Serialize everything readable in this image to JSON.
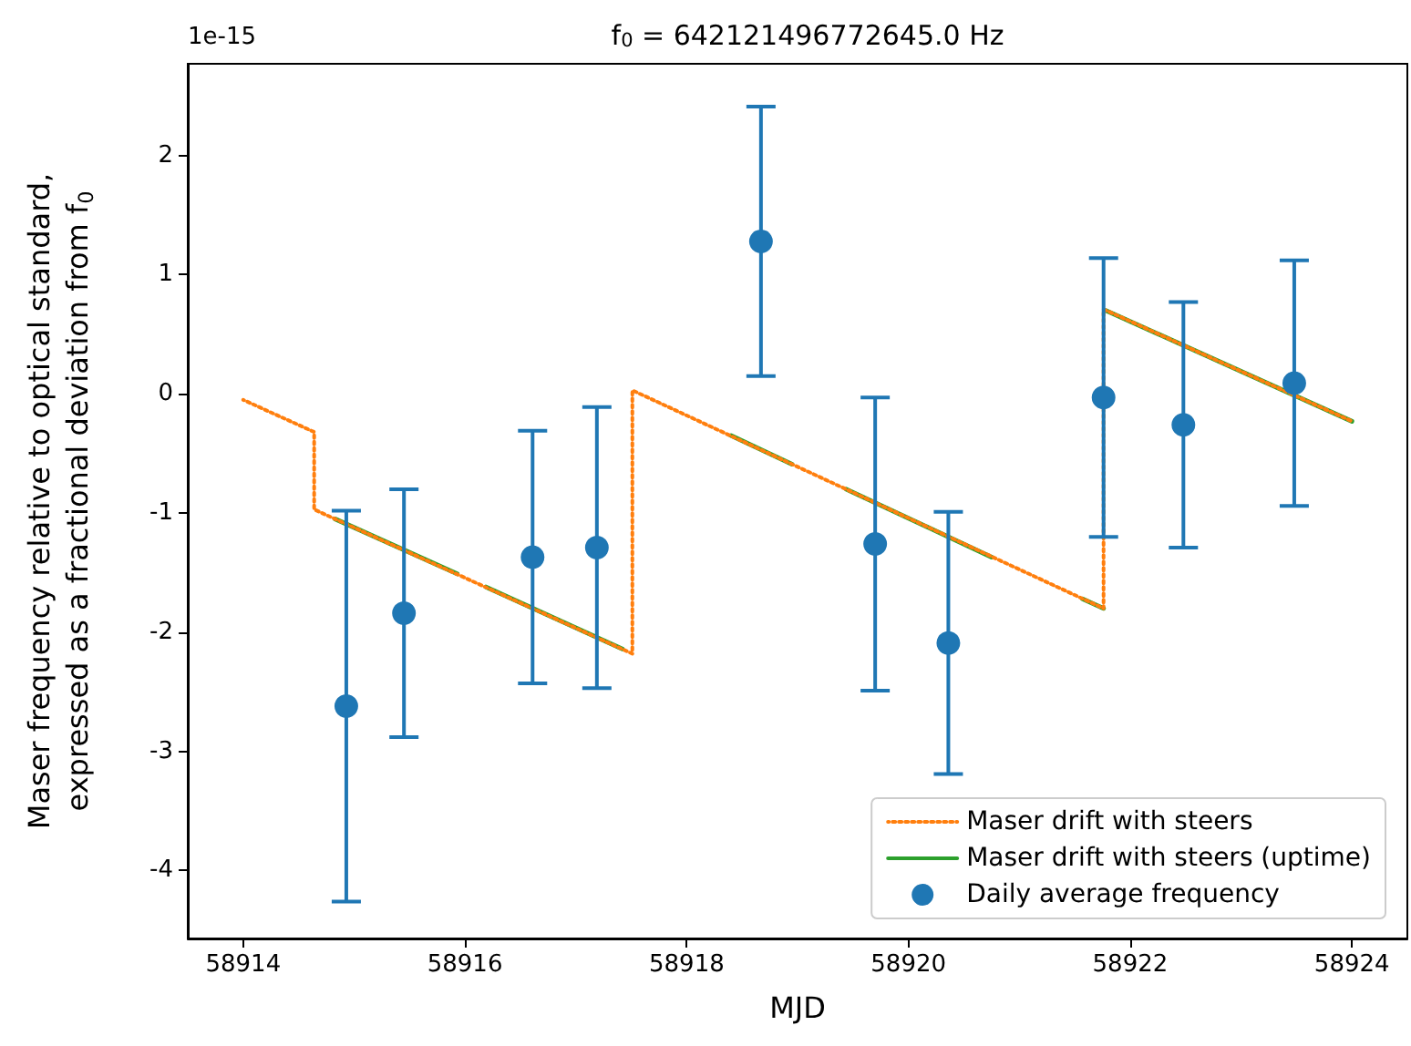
{
  "chart_data": {
    "type": "scatter",
    "title": "f$_{0}$ = 642121496772645.0 Hz",
    "xlabel": "MJD",
    "ylabel": "Maser frequency relative to optical standard,\nexpressed as a fractional deviation from f$_{0}$",
    "annotations": [
      "1e-15"
    ],
    "xlim": [
      58913.5,
      58924.5
    ],
    "xticks": [
      58914,
      58916,
      58918,
      58920,
      58922,
      58924
    ],
    "ylim": [
      -4.57,
      2.77
    ],
    "yticks": [
      -4,
      -3,
      -2,
      -1,
      0,
      1,
      2
    ],
    "grid": false,
    "legend": "bottom right",
    "series": [
      {
        "name": "Maser drift with steers",
        "type": "line",
        "line_style": "dotted",
        "marker": "none",
        "color": "#ff7f0e",
        "x": [
          58914,
          58914.64,
          58914.64,
          58917.51,
          58917.51,
          58921.76,
          58921.76,
          58924
        ],
        "values": [
          -0.05,
          -0.32,
          -0.97,
          -2.18,
          0.03,
          -1.8,
          0.71,
          -0.23
        ]
      },
      {
        "name": "Maser drift with steers (uptime)",
        "type": "line",
        "line_style": "solid",
        "marker": "none",
        "color": "#2ca02c",
        "x": [
          58914.83,
          58915.93,
          58916.06,
          58916.19,
          58917.42,
          58917.9,
          58918.4,
          58918.95,
          58919.2,
          58919.44,
          58920.75,
          58921.2,
          58921.57,
          58921.76,
          58921.77,
          58921.78,
          58924
        ],
        "values": [
          -1.05,
          -1.51,
          null,
          -1.62,
          -2.14,
          null,
          -0.35,
          -0.59,
          null,
          -0.8,
          -1.37,
          null,
          -1.72,
          -1.8,
          null,
          0.7,
          -0.23
        ]
      },
      {
        "name": "Daily average frequency",
        "marker": "circle",
        "color": "#1f77b4",
        "x": [
          58914.93,
          58915.45,
          58916.61,
          58917.19,
          58918.67,
          58919.7,
          58920.36,
          58921.76,
          58922.48,
          58923.48
        ],
        "values": [
          -2.62,
          -1.84,
          -1.37,
          -1.29,
          1.28,
          -1.26,
          -2.09,
          -0.03,
          -0.26,
          0.09
        ],
        "errors": [
          1.64,
          1.04,
          1.06,
          1.18,
          1.13,
          1.23,
          1.1,
          1.17,
          1.03,
          1.03
        ]
      }
    ]
  }
}
